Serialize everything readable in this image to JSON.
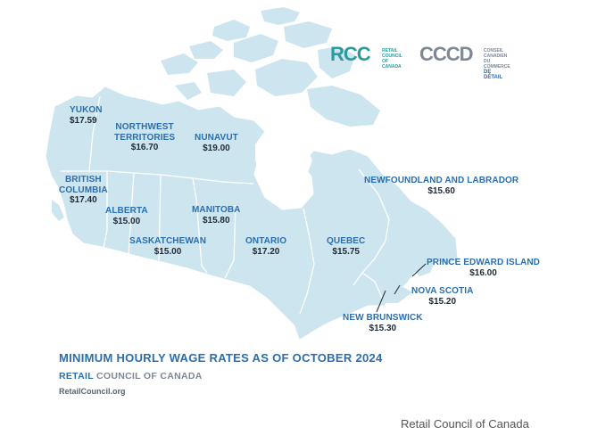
{
  "logos": {
    "rcc": {
      "mark": "RCC",
      "line1": "RETAIL",
      "line2": "COUNCIL",
      "line3": "OF CANADA",
      "color": "#2a9c9c"
    },
    "cccd": {
      "mark": "CCCD",
      "line1": "CONSEIL CANADIEN",
      "line2": "DU COMMERCE",
      "line3": "DE DÉTAIL",
      "color": "#7f8894",
      "accent": "#2a6eb0"
    }
  },
  "provinces": [
    {
      "id": "yukon",
      "name": "YUKON",
      "wage": "$17.59"
    },
    {
      "id": "nwt",
      "name_line1": "NORTHWEST",
      "name_line2": "TERRITORIES",
      "wage": "$16.70"
    },
    {
      "id": "nunavut",
      "name": "NUNAVUT",
      "wage": "$19.00"
    },
    {
      "id": "bc",
      "name_line1": "BRITISH",
      "name_line2": "COLUMBIA",
      "wage": "$17.40"
    },
    {
      "id": "alberta",
      "name": "ALBERTA",
      "wage": "$15.00"
    },
    {
      "id": "manitoba",
      "name": "MANITOBA",
      "wage": "$15.80"
    },
    {
      "id": "saskatchewan",
      "name": "SASKATCHEWAN",
      "wage": "$15.00"
    },
    {
      "id": "ontario",
      "name": "ONTARIO",
      "wage": "$17.20"
    },
    {
      "id": "quebec",
      "name": "QUEBEC",
      "wage": "$15.75"
    },
    {
      "id": "nl",
      "name": "NEWFOUNDLAND AND LABRADOR",
      "wage": "$15.60"
    },
    {
      "id": "pei",
      "name": "PRINCE EDWARD ISLAND",
      "wage": "$16.00"
    },
    {
      "id": "ns",
      "name": "NOVA SCOTIA",
      "wage": "$15.20"
    },
    {
      "id": "nb",
      "name": "NEW BRUNSWICK",
      "wage": "$15.30"
    }
  ],
  "title": "MINIMUM HOURLY WAGE RATES AS OF OCTOBER 2024",
  "org": {
    "word1": "RETAIL",
    "word2": "COUNCIL OF CANADA"
  },
  "website": "RetailCouncil.org",
  "credit": "Retail Council of Canada",
  "colors": {
    "land": "#cde5ef",
    "border": "#ffffff",
    "label": "#2a6eb0",
    "value": "#1f2a36"
  }
}
